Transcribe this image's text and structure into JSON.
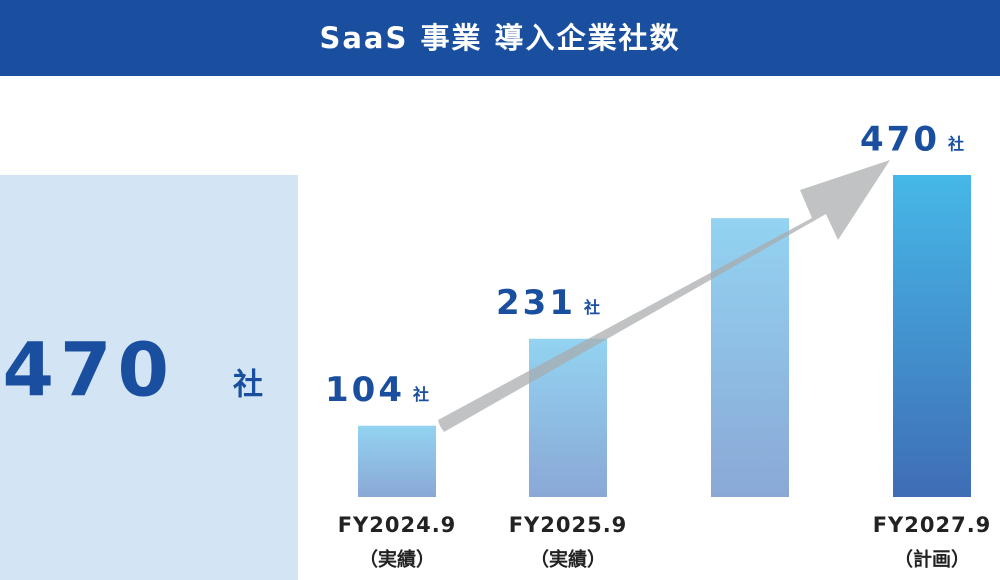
{
  "chart_data": {
    "type": "bar",
    "title": "SaaS 事業 導入企業社数",
    "highlight": {
      "value": 470,
      "unit": "社"
    },
    "categories": [
      "FY2024.9",
      "FY2025.9",
      null,
      "FY2027.9"
    ],
    "category_notes": [
      "（実績）",
      "（実績）",
      null,
      "（計画）"
    ],
    "values": [
      104,
      231,
      407,
      470
    ],
    "value_labels": [
      "104",
      "231",
      null,
      "470"
    ],
    "unit": "社",
    "colors": [
      [
        "#93d3f1",
        "#8aa8d6"
      ],
      [
        "#93d3f1",
        "#8aa8d6"
      ],
      [
        "#93d3f1",
        "#8aa8d6"
      ],
      [
        "#46b8e8",
        "#3f6db5"
      ]
    ]
  }
}
